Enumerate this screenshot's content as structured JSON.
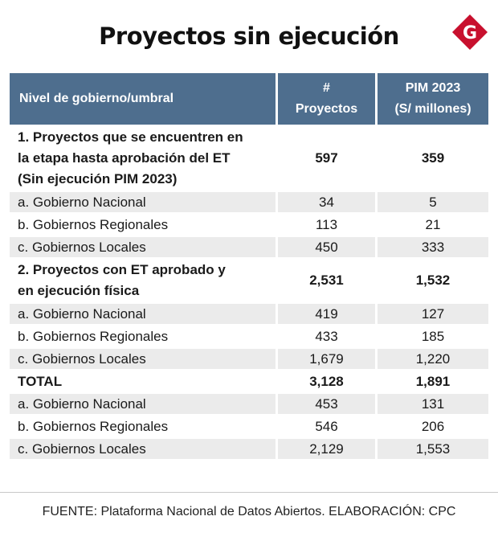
{
  "title": "Proyectos sin ejecución",
  "logo": {
    "letter": "G",
    "color": "#c8102e"
  },
  "header": {
    "col1": "Nivel de gobierno/umbral",
    "col2_line1": "#",
    "col2_line2": "Proyectos",
    "col3_line1": "PIM 2023",
    "col3_line2": "(S/ millones)"
  },
  "rows": [
    {
      "label_lines": [
        "1. Proyectos que se encuentren en",
        "la etapa hasta aprobación del ET",
        "(Sin ejecución PIM 2023)"
      ],
      "proyectos": "597",
      "pim": "359"
    },
    {
      "label": "a. Gobierno Nacional",
      "proyectos": "34",
      "pim": "5"
    },
    {
      "label": "b. Gobiernos Regionales",
      "proyectos": "113",
      "pim": "21"
    },
    {
      "label": "c. Gobiernos Locales",
      "proyectos": "450",
      "pim": "333"
    },
    {
      "label_lines": [
        "2. Proyectos con ET aprobado y",
        "en ejecución física"
      ],
      "proyectos": "2,531",
      "pim": "1,532"
    },
    {
      "label": "a. Gobierno Nacional",
      "proyectos": "419",
      "pim": "127"
    },
    {
      "label": "b. Gobiernos Regionales",
      "proyectos": "433",
      "pim": "185"
    },
    {
      "label": "c. Gobiernos Locales",
      "proyectos": "1,679",
      "pim": "1,220"
    },
    {
      "label": "TOTAL",
      "proyectos": "3,128",
      "pim": "1,891"
    },
    {
      "label": "a. Gobierno Nacional",
      "proyectos": "453",
      "pim": "131"
    },
    {
      "label": "b. Gobiernos Regionales",
      "proyectos": "546",
      "pim": "206"
    },
    {
      "label": "c. Gobiernos Locales",
      "proyectos": "2,129",
      "pim": "1,553"
    }
  ],
  "source": "FUENTE: Plataforma Nacional de Datos Abiertos. ELABORACIÓN: CPC",
  "colors": {
    "header_bg": "#4e6e8e",
    "row_shade": "#ebebeb",
    "brand_red": "#c8102e"
  }
}
